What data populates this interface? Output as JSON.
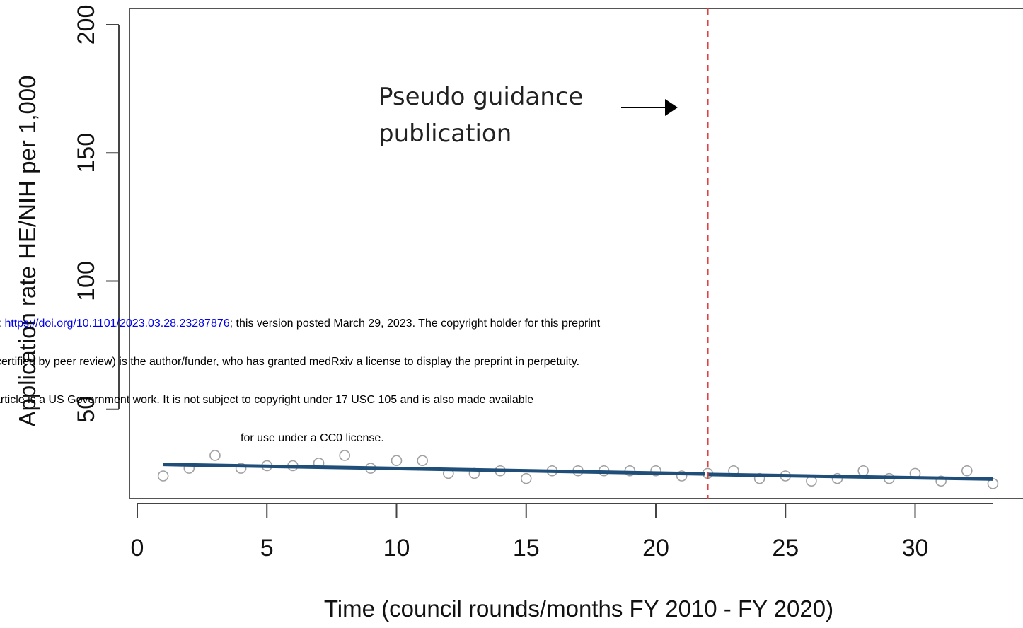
{
  "chart_data": {
    "type": "scatter",
    "xlabel": "Time (council rounds/months FY 2010 - FY 2020)",
    "ylabel": "Application rate HE/NIH per 1,000",
    "xlim": [
      0,
      33
    ],
    "ylim": [
      0,
      200
    ],
    "xticks": [
      "0",
      "5",
      "10",
      "15",
      "20",
      "25",
      "30"
    ],
    "yticks": [
      "50",
      "100",
      "150",
      "200"
    ],
    "points": {
      "x": [
        1,
        2,
        3,
        4,
        5,
        6,
        7,
        8,
        9,
        10,
        11,
        12,
        13,
        14,
        15,
        16,
        17,
        18,
        19,
        20,
        21,
        22,
        23,
        24,
        25,
        26,
        27,
        28,
        29,
        30,
        31,
        32,
        33
      ],
      "y": [
        24,
        27,
        32,
        27,
        28,
        28,
        29,
        32,
        27,
        30,
        30,
        25,
        25,
        26,
        23,
        26,
        26,
        26,
        26,
        26,
        24,
        25,
        26,
        23,
        24,
        22,
        23,
        26,
        23,
        25,
        22,
        26,
        21
      ]
    },
    "trend_segments": [
      {
        "x": [
          1,
          21.9
        ],
        "y": [
          28.5,
          24.8
        ]
      },
      {
        "x": [
          22,
          33
        ],
        "y": [
          24.6,
          22.8
        ]
      }
    ],
    "intervention": {
      "x": 22,
      "style": "dashed",
      "color": "#e04040"
    },
    "annotation": {
      "lines": [
        "Pseudo guidance",
        "publication"
      ]
    },
    "colors": {
      "trend": "#1f4e79",
      "points": "#a0a0a0",
      "axis": "#444444"
    },
    "grid": false
  },
  "preprint_notice": {
    "line1_prefix": "i: ",
    "line1_link": "https://doi.org/10.1101/2023.03.28.23287876",
    "line1_suffix": "; this version posted March 29, 2023. The copyright holder for this preprint",
    "line2": "certified by peer review) is the author/funder, who has granted medRxiv a license to display the preprint in perpetuity.",
    "line3": "article is a US Government work. It is not subject to copyright under 17 USC 105 and is also made available",
    "line4": "for use under a CC0 license."
  }
}
